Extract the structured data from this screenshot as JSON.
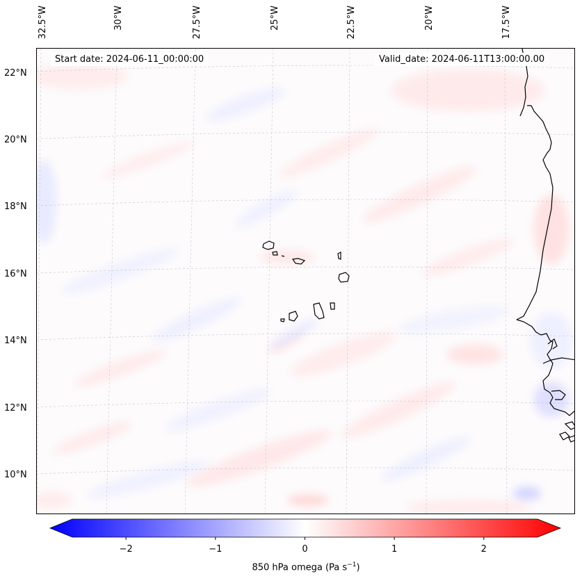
{
  "map": {
    "start_date_label": "Start date: 2024-06-11_00:00:00",
    "valid_date_label": "Valid_date: 2024-06-11T13:00:00.00",
    "longitude_labels": [
      "32.5°W",
      "30°W",
      "27.5°W",
      "25°W",
      "22.5°W",
      "20°W",
      "17.5°W"
    ],
    "latitude_labels": [
      "22°N",
      "20°N",
      "18°N",
      "16°N",
      "14°N",
      "12°N",
      "10°N"
    ],
    "variable": "850 hPa omega",
    "units": "Pa s⁻¹",
    "colormap": "bwr"
  },
  "colorbar": {
    "ticks": [
      "−2",
      "−1",
      "0",
      "1",
      "2"
    ],
    "min": -2.6,
    "max": 2.6,
    "label_prefix": "850 hPa omega (Pa s",
    "label_sup": "−1",
    "label_suffix": ")",
    "color_low": "#0000ff",
    "color_mid": "#ffffff",
    "color_high": "#ff0000"
  }
}
